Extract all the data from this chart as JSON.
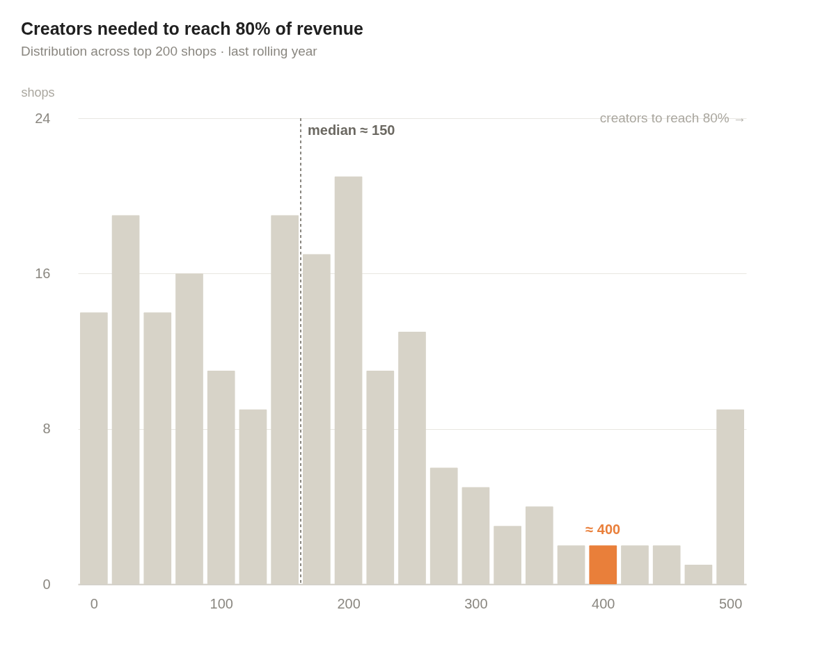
{
  "chart_data": {
    "type": "histogram",
    "title": "Creators needed to reach 80% of revenue",
    "subtitle": "Distribution across top 200 shops · last rolling year",
    "ylabel": "shops",
    "xlabel": "creators to reach 80% →",
    "bins": [
      -12.5,
      12.5,
      37.5,
      62.5,
      87.5,
      112.5,
      137.5,
      162.5,
      187.5,
      212.5,
      237.5,
      262.5,
      287.5,
      312.5,
      337.5,
      362.5,
      387.5,
      412.5,
      437.5,
      462.5,
      487.5,
      512.5
    ],
    "values": [
      14,
      19,
      14,
      16,
      11,
      9,
      19,
      17,
      21,
      11,
      13,
      6,
      5,
      3,
      4,
      2,
      2,
      2,
      2,
      1,
      9
    ],
    "colors": [
      "#d7d3c8",
      "#d7d3c8",
      "#d7d3c8",
      "#d7d3c8",
      "#d7d3c8",
      "#d7d3c8",
      "#d7d3c8",
      "#d7d3c8",
      "#d7d3c8",
      "#d7d3c8",
      "#d7d3c8",
      "#d7d3c8",
      "#d7d3c8",
      "#d7d3c8",
      "#d7d3c8",
      "#d7d3c8",
      "#e97f3a",
      "#d7d3c8",
      "#d7d3c8",
      "#d7d3c8",
      "#d7d3c8"
    ],
    "xlim": [
      -12.5,
      512.5
    ],
    "xticks": [
      0,
      100,
      200,
      300,
      400,
      500
    ],
    "ylim": [
      0,
      24
    ],
    "yticks": [
      0,
      8,
      16,
      24
    ],
    "grid": "y",
    "ref_lines": [
      {
        "axis": "x",
        "value": 162.5,
        "label": "median ≈ 150",
        "color": "#8a8780",
        "line_style": "dashed"
      }
    ],
    "annotations": [
      {
        "text": "≈ 400",
        "x": 400,
        "y": 2
      }
    ]
  }
}
